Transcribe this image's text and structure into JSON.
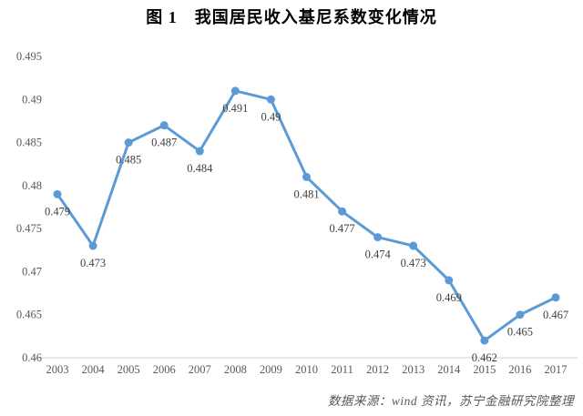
{
  "chart_data": {
    "type": "line",
    "title": "图 1　我国居民收入基尼系数变化情况",
    "source_note": "数据来源：wind 资讯，苏宁金融研究院整理",
    "categories": [
      "2003",
      "2004",
      "2005",
      "2006",
      "2007",
      "2008",
      "2009",
      "2010",
      "2011",
      "2012",
      "2013",
      "2014",
      "2015",
      "2016",
      "2017"
    ],
    "values": [
      0.479,
      0.473,
      0.485,
      0.487,
      0.484,
      0.491,
      0.49,
      0.481,
      0.477,
      0.474,
      0.473,
      0.469,
      0.462,
      0.465,
      0.467
    ],
    "point_labels": [
      "0.479",
      "0.473",
      "0.485",
      "0.487",
      "0.484",
      "0.491",
      "0.49",
      "0.481",
      "0.477",
      "0.474",
      "0.473",
      "0.469",
      "0.462",
      "0.465",
      "0.467"
    ],
    "xlabel": "",
    "ylabel": "",
    "ylim": [
      0.46,
      0.495
    ],
    "yticks": [
      "0.46",
      "0.465",
      "0.47",
      "0.475",
      "0.48",
      "0.485",
      "0.49",
      "0.495"
    ],
    "grid": false,
    "legend_position": "none",
    "marker": "circle",
    "data_labels_position": "below",
    "colors": {
      "line": "#5B9BD5",
      "marker": "#5B9BD5",
      "axis_text": "#595959",
      "data_label_text": "#404040",
      "axis_line": "#D9D9D9",
      "title_text": "#000000",
      "source_text": "#595959"
    }
  }
}
